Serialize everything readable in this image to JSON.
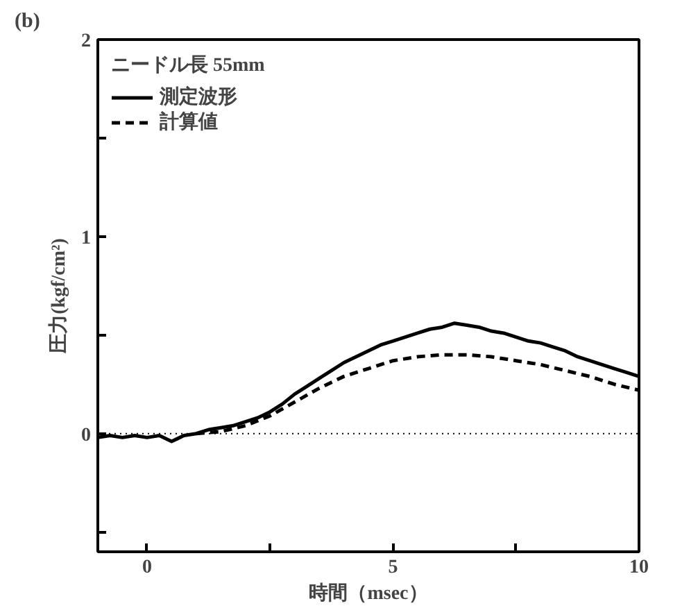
{
  "chart_data": {
    "type": "line",
    "annotations": [
      "(b)"
    ],
    "xlabel": "時間（msec）",
    "ylabel": "圧力(kgf/cm²)",
    "xlim": [
      -1,
      10
    ],
    "ylim": [
      -0.6,
      2
    ],
    "xticks": [
      0,
      {
        "value": 2.5,
        "label": null
      },
      5,
      {
        "value": 7.5,
        "label": null
      },
      10
    ],
    "yticks": [
      {
        "value": -0.5,
        "label": null
      },
      0,
      {
        "value": 0.5,
        "label": null
      },
      1,
      {
        "value": 1.5,
        "label": null
      },
      2
    ],
    "grid": false,
    "legend": "top left",
    "legend_title": "ニードル長 55mm",
    "ref_lines": [
      {
        "axis": "y",
        "value": 0,
        "line_style": "dotted",
        "color": "#000000"
      }
    ],
    "series": [
      {
        "name": "測定波形",
        "color": "#000000",
        "line_style": "solid",
        "x": [
          -1,
          -0.75,
          -0.5,
          -0.25,
          0,
          0.25,
          0.5,
          0.75,
          1,
          1.25,
          1.5,
          1.75,
          2,
          2.25,
          2.5,
          2.75,
          3,
          3.25,
          3.5,
          3.75,
          4,
          4.25,
          4.5,
          4.75,
          5,
          5.25,
          5.5,
          5.75,
          6,
          6.25,
          6.5,
          6.75,
          7,
          7.25,
          7.5,
          7.75,
          8,
          8.25,
          8.5,
          8.75,
          9,
          9.25,
          9.5,
          9.75,
          10
        ],
        "values": [
          -0.02,
          -0.01,
          -0.02,
          -0.01,
          -0.02,
          -0.01,
          -0.04,
          -0.01,
          0.0,
          0.02,
          0.03,
          0.04,
          0.06,
          0.08,
          0.11,
          0.15,
          0.2,
          0.24,
          0.28,
          0.32,
          0.36,
          0.39,
          0.42,
          0.45,
          0.47,
          0.49,
          0.51,
          0.53,
          0.54,
          0.56,
          0.55,
          0.54,
          0.52,
          0.51,
          0.49,
          0.47,
          0.46,
          0.44,
          0.42,
          0.39,
          0.37,
          0.35,
          0.33,
          0.31,
          0.29
        ]
      },
      {
        "name": "計算値",
        "color": "#000000",
        "line_style": "dashed",
        "x": [
          1,
          1.5,
          2,
          2.5,
          3,
          3.5,
          4,
          4.5,
          5,
          5.5,
          6,
          6.5,
          7,
          7.5,
          8,
          8.5,
          9,
          9.5,
          10
        ],
        "values": [
          0.0,
          0.01,
          0.04,
          0.09,
          0.16,
          0.23,
          0.29,
          0.33,
          0.37,
          0.39,
          0.4,
          0.4,
          0.39,
          0.37,
          0.35,
          0.32,
          0.29,
          0.25,
          0.22
        ]
      }
    ]
  }
}
